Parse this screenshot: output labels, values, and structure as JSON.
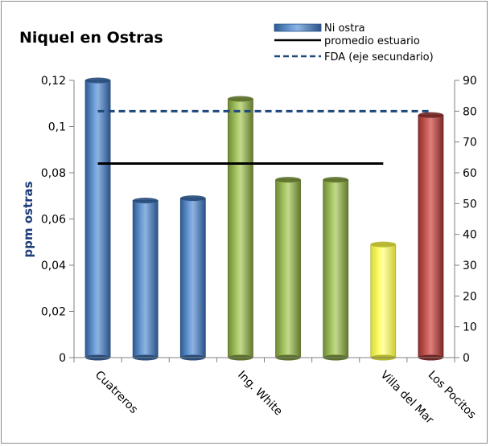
{
  "chart_data": {
    "type": "bar",
    "title": "Niquel en Ostras",
    "ylabel": "ppm ostras",
    "categories": [
      "Cuatreros",
      "",
      "",
      "Ing. White",
      "",
      "",
      "Villa del Mar",
      "Los Pocitos"
    ],
    "values": [
      0.12,
      0.068,
      0.069,
      0.112,
      0.077,
      0.077,
      0.049,
      0.105
    ],
    "bar_colors": [
      "#4f81bd",
      "#4f81bd",
      "#4f81bd",
      "#9bbb59",
      "#9bbb59",
      "#9bbb59",
      "#ffff66",
      "#c0504d"
    ],
    "ylim": [
      0,
      0.12
    ],
    "yticks": [
      "0",
      "0,02",
      "0,04",
      "0,06",
      "0,08",
      "0,1",
      "0,12"
    ],
    "ytick_values": [
      0,
      0.02,
      0.04,
      0.06,
      0.08,
      0.1,
      0.12
    ],
    "y2lim": [
      0,
      90
    ],
    "y2ticks": [
      "0",
      "10",
      "20",
      "30",
      "40",
      "50",
      "60",
      "70",
      "80",
      "90"
    ],
    "y2tick_values": [
      0,
      10,
      20,
      30,
      40,
      50,
      60,
      70,
      80,
      90
    ],
    "lines": [
      {
        "name": "promedio estuario",
        "value": 0.084,
        "axis": "primary",
        "from_index": 0,
        "to_index": 6,
        "color": "#000000",
        "dash": "solid"
      },
      {
        "name": "FDA (eje secundario)",
        "value": 80,
        "axis": "secondary",
        "from_index": 0,
        "to_index": 7,
        "color": "#1f497d",
        "dash": "dashed"
      }
    ],
    "legend": {
      "position": "top-right",
      "entries": [
        "Ni ostra",
        "promedio estuario",
        "FDA (eje secundario)"
      ]
    },
    "grid": false
  }
}
